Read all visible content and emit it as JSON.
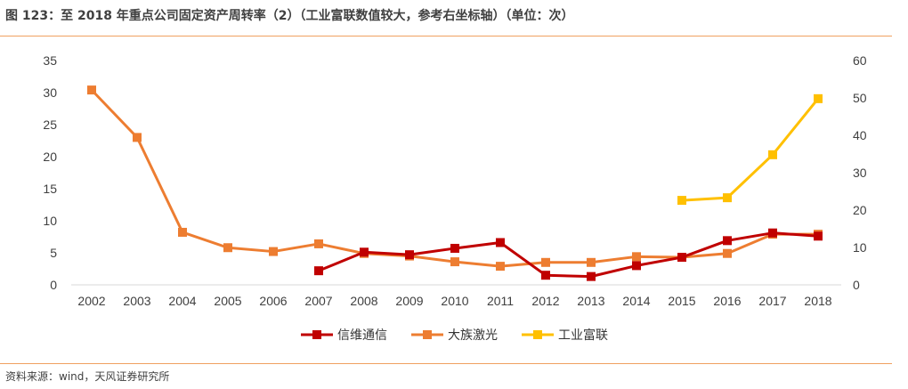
{
  "title": "图 123：至 2018 年重点公司固定资产周转率（2）（工业富联数值较大，参考右坐标轴）（单位：次）",
  "source": "资料来源：wind，天风证券研究所",
  "colors": {
    "rule": "#f0a060"
  },
  "chart_data": {
    "type": "line",
    "x": [
      "2002",
      "2003",
      "2004",
      "2005",
      "2006",
      "2007",
      "2008",
      "2009",
      "2010",
      "2011",
      "2012",
      "2013",
      "2014",
      "2015",
      "2016",
      "2017",
      "2018"
    ],
    "y_left": {
      "ticks": [
        0,
        5,
        10,
        15,
        20,
        25,
        30,
        35
      ],
      "range": [
        0,
        35
      ]
    },
    "y_right": {
      "ticks": [
        0,
        10,
        20,
        30,
        40,
        50,
        60
      ],
      "range": [
        0,
        60
      ]
    },
    "series": [
      {
        "name": "信维通信",
        "color": "#c00000",
        "axis": "left",
        "values": [
          null,
          null,
          null,
          null,
          null,
          2.2,
          5.1,
          4.7,
          5.7,
          6.6,
          1.5,
          1.3,
          3.0,
          4.3,
          6.9,
          8.1,
          7.6
        ]
      },
      {
        "name": "大族激光",
        "color": "#ed7d31",
        "axis": "left",
        "values": [
          30.4,
          23.0,
          8.2,
          5.8,
          5.2,
          6.4,
          4.9,
          4.5,
          3.6,
          2.9,
          3.5,
          3.5,
          4.4,
          4.3,
          4.9,
          7.9,
          7.9
        ]
      },
      {
        "name": "工业富联",
        "color": "#ffc000",
        "axis": "right",
        "values": [
          null,
          null,
          null,
          null,
          null,
          null,
          null,
          null,
          null,
          null,
          null,
          null,
          null,
          22.6,
          23.3,
          34.8,
          49.8
        ]
      }
    ],
    "legend_position": "bottom",
    "grid": false
  }
}
